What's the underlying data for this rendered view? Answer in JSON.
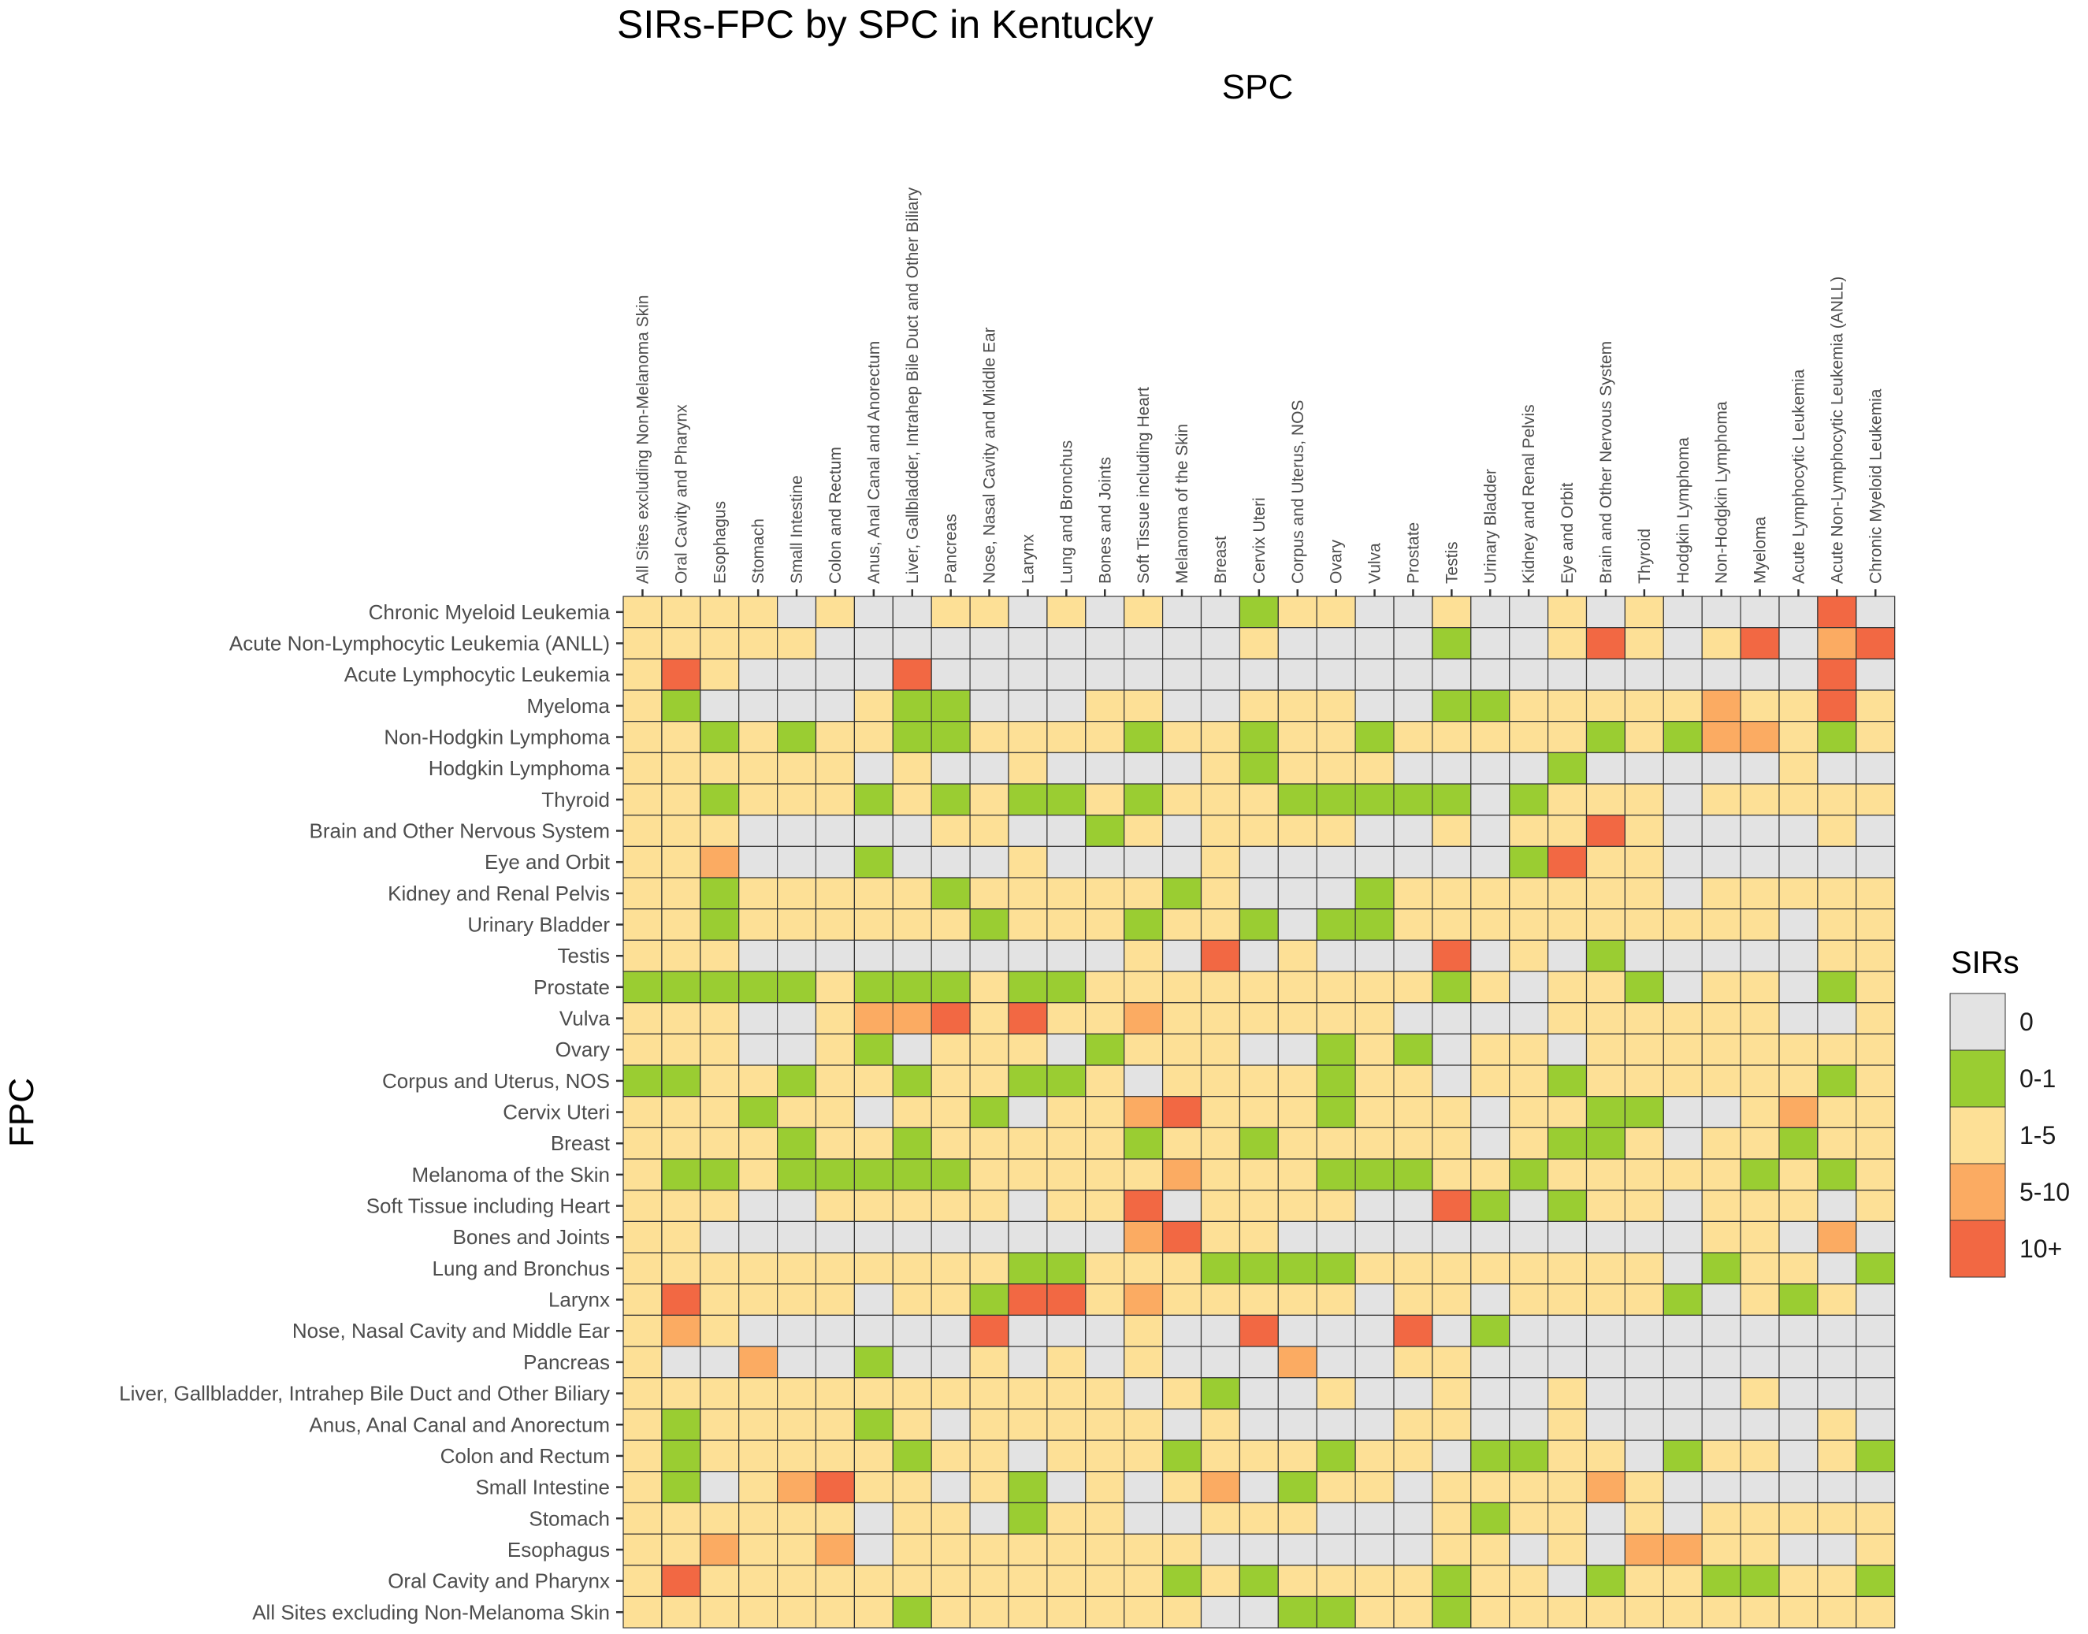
{
  "chart_data": {
    "type": "heatmap",
    "title": "SIRs-FPC by SPC in Kentucky",
    "xlabel": "SPC",
    "ylabel": "FPC",
    "x_categories": [
      "All Sites excluding Non-Melanoma Skin",
      "Oral Cavity and Pharynx",
      "Esophagus",
      "Stomach",
      "Small Intestine",
      "Colon and Rectum",
      "Anus, Anal Canal and Anorectum",
      "Liver, Gallbladder, Intrahep Bile Duct and Other Biliary",
      "Pancreas",
      "Nose, Nasal Cavity and Middle Ear",
      "Larynx",
      "Lung and Bronchus",
      "Bones and Joints",
      "Soft Tissue including Heart",
      "Melanoma of the Skin",
      "Breast",
      "Cervix Uteri",
      "Corpus and Uterus, NOS",
      "Ovary",
      "Vulva",
      "Prostate",
      "Testis",
      "Urinary Bladder",
      "Kidney and Renal Pelvis",
      "Eye and Orbit",
      "Brain and Other Nervous System",
      "Thyroid",
      "Hodgkin Lymphoma",
      "Non-Hodgkin Lymphoma",
      "Myeloma",
      "Acute Lymphocytic Leukemia",
      "Acute Non-Lymphocytic Leukemia (ANLL)",
      "Chronic Myeloid Leukemia"
    ],
    "y_categories_top_to_bottom": [
      "Chronic Myeloid Leukemia",
      "Acute Non-Lymphocytic Leukemia (ANLL)",
      "Acute Lymphocytic Leukemia",
      "Myeloma",
      "Non-Hodgkin Lymphoma",
      "Hodgkin Lymphoma",
      "Thyroid",
      "Brain and Other Nervous System",
      "Eye and Orbit",
      "Kidney and Renal Pelvis",
      "Urinary Bladder",
      "Testis",
      "Prostate",
      "Vulva",
      "Ovary",
      "Corpus and Uterus, NOS",
      "Cervix Uteri",
      "Breast",
      "Melanoma of the Skin",
      "Soft Tissue including Heart",
      "Bones and Joints",
      "Lung and Bronchus",
      "Larynx",
      "Nose, Nasal Cavity and Middle Ear",
      "Pancreas",
      "Liver, Gallbladder, Intrahep Bile Duct and Other Biliary",
      "Anus, Anal Canal and Anorectum",
      "Colon and Rectum",
      "Small Intestine",
      "Stomach",
      "Esophagus",
      "Oral Cavity and Pharynx",
      "All Sites excluding Non-Melanoma Skin"
    ],
    "legend": {
      "title": "SIRs",
      "position": "right",
      "categories": [
        "0",
        "0-1",
        "1-5",
        "5-10",
        "10+"
      ],
      "colors": [
        "#e3e3e3",
        "#9acd32",
        "#fde096",
        "#fbab62",
        "#f26843"
      ]
    },
    "cell_category_codes": "0=\"0\", 1=\"0-1\", 2=\"1-5\", 3=\"5-10\", 4=\"10+\"; rows top-to-bottom, columns left-to-right",
    "cells": [
      "222202002202020012200200202000040",
      "222220000000000020000100242024034",
      "242000040000000000000000000000040",
      "210000211000220022200112222232242",
      "221212211222212212212222212133212",
      "222222020020000212220000100000200",
      "221222121211212221111101222022222",
      "222000002200120222200202242000020",
      "223000100020000200000001422000000",
      "221222221222221200012222222022222",
      "221222222122212210112222222222022",
      "222000000000020402000402010000022",
      "111112111211222222222120221022012",
      "222002334242232222220000222222002",
      "222002102220122200121022022222222",
      "112212212211202222122022122222212",
      "222122022102234222122202211002322",
      "222212212222212212222202112022122",
      "211211111222223222111221222221212",
      "222002222202240222200410122022202",
      "220000000000034220000000000022030",
      "222222222211222111122222222012201",
      "242222022144232222202202222102120",
      "232000000400020040004010000000000",
      "200300100202020003002200000000000",
      "222222222222202100200200200002000",
      "212222120222220200002200200000020",
      "212222212202221222122011220122021",
      "210234220210202301220222232000000",
      "222222022012200222000212202022222",
      "223223022222222000000220203322002",
      "242222222222221212222122012211221",
      "222222212222222001122122222222222"
    ]
  }
}
